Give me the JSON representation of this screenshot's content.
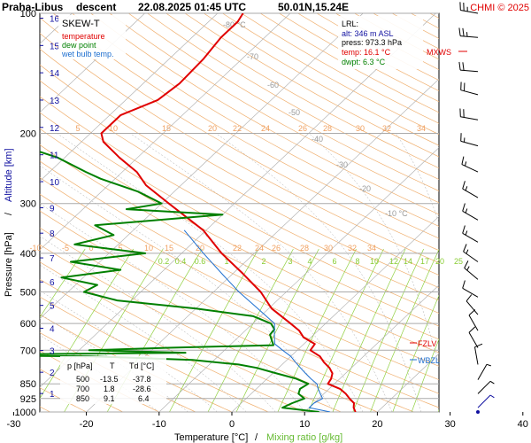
{
  "header": {
    "station": "Praha-Libus",
    "mode": "descent",
    "datetime": "22.08.2025 01:45 UTC",
    "coords": "50.01N,15.24E",
    "credit": "CHMI © 2025"
  },
  "legend": {
    "title": "SKEW-T",
    "items": [
      {
        "label": "temperature",
        "color": "#e00000"
      },
      {
        "label": "dew point",
        "color": "#008000"
      },
      {
        "label": "wet bulb temp.",
        "color": "#1e6fd0"
      }
    ]
  },
  "lrl": {
    "title": "LRL:",
    "alt": "alt: 346 m ASL",
    "press": "press: 973.3 hPa",
    "temp": "temp: 16.1 °C",
    "dwpt": "dwpt: 6.3 °C"
  },
  "table": {
    "headers": [
      "p [hPa]",
      "T",
      "Td [°C]"
    ],
    "rows": [
      [
        "500",
        "-13.5",
        "-37.8"
      ],
      [
        "700",
        "1.8",
        "-28.6"
      ],
      [
        "850",
        "9.1",
        "6.4"
      ]
    ]
  },
  "axes": {
    "xlabel_main": "Temperature [°C]",
    "xlabel_sep": "/",
    "xlabel_mix": "Mixing ratio [g/kg]",
    "ylabel_main": "Pressure [hPa]",
    "ylabel_sep": "/",
    "ylabel_alt": "Altitude [km]"
  },
  "markers": {
    "mxws": "MXWS",
    "fzlv": "FZLV",
    "wbzl": "WBZL"
  },
  "colors": {
    "temperature": "#e00000",
    "dewpoint": "#008000",
    "wetbulb": "#1e6fd0",
    "isotherm": "#aaaaaa",
    "dry_adiabat": "#f0b070",
    "moist_adiabat": "#aaaaaa",
    "mixing_ratio": "#90d040",
    "altitude": "#1010a0",
    "wind": "#000000"
  },
  "chart_data": {
    "type": "line",
    "subtype": "skew-t log-p diagram",
    "x_ticks": [
      -30,
      -20,
      -10,
      0,
      10,
      20,
      30,
      40
    ],
    "y_ticks": [
      100,
      200,
      300,
      400,
      500,
      600,
      700,
      850,
      925,
      1000
    ],
    "ylim": [
      1000,
      100
    ],
    "altitude_ticks_km": [
      1,
      2,
      3,
      4,
      5,
      6,
      7,
      8,
      9,
      10,
      11,
      12,
      13,
      14,
      15,
      16
    ],
    "mixing_ratio_labels": [
      "0.2",
      "0.4",
      "0.6",
      "1",
      "2",
      "3",
      "4",
      "6",
      "8",
      "10",
      "12",
      "14",
      "17",
      "20",
      "25"
    ],
    "dry_adiabat_labels": [
      "-10",
      "-5",
      "0",
      "5",
      "10",
      "15",
      "20",
      "22",
      "24",
      "26",
      "28",
      "30",
      "32",
      "34"
    ],
    "upper_dry_adiabat_labels": [
      "5",
      "10",
      "15",
      "20",
      "22",
      "24",
      "26",
      "28",
      "30",
      "32",
      "34"
    ],
    "isotherm_labels": [
      "-80 °C",
      "-70",
      "-60",
      "-50",
      "-40",
      "-30",
      "-20",
      "-10 °C"
    ],
    "series": [
      {
        "name": "temperature",
        "points": [
          [
            1000,
            17.0
          ],
          [
            975,
            16.1
          ],
          [
            950,
            15.5
          ],
          [
            925,
            14.2
          ],
          [
            900,
            13.0
          ],
          [
            875,
            11.5
          ],
          [
            850,
            9.1
          ],
          [
            825,
            8.8
          ],
          [
            800,
            8.2
          ],
          [
            775,
            7.0
          ],
          [
            750,
            5.4
          ],
          [
            725,
            4.0
          ],
          [
            700,
            1.8
          ],
          [
            675,
            1.5
          ],
          [
            650,
            -1.0
          ],
          [
            625,
            -2.6
          ],
          [
            600,
            -4.8
          ],
          [
            550,
            -9.6
          ],
          [
            500,
            -13.5
          ],
          [
            450,
            -18.6
          ],
          [
            400,
            -24.5
          ],
          [
            350,
            -30.4
          ],
          [
            300,
            -39.0
          ],
          [
            270,
            -44.8
          ],
          [
            250,
            -48.0
          ],
          [
            230,
            -52.5
          ],
          [
            210,
            -57.0
          ],
          [
            200,
            -58.5
          ],
          [
            180,
            -58.5
          ],
          [
            165,
            -55.6
          ],
          [
            150,
            -55.0
          ],
          [
            130,
            -55.3
          ],
          [
            115,
            -56.0
          ],
          [
            105,
            -56.0
          ],
          [
            100,
            -56.5
          ]
        ]
      },
      {
        "name": "dew point",
        "points": [
          [
            1000,
            12.0
          ],
          [
            975,
            6.3
          ],
          [
            950,
            7.0
          ],
          [
            925,
            8.0
          ],
          [
            900,
            6.5
          ],
          [
            875,
            6.0
          ],
          [
            850,
            6.4
          ],
          [
            825,
            4.0
          ],
          [
            800,
            0.5
          ],
          [
            775,
            -3.0
          ],
          [
            760,
            -6.0
          ],
          [
            740,
            -13.0
          ],
          [
            725,
            -27.5
          ],
          [
            720,
            -50.0
          ],
          [
            710,
            -15.0
          ],
          [
            700,
            -28.6
          ],
          [
            690,
            -18.0
          ],
          [
            680,
            -4.0
          ],
          [
            660,
            -5.0
          ],
          [
            640,
            -6.0
          ],
          [
            620,
            -6.2
          ],
          [
            600,
            -7.5
          ],
          [
            575,
            -11.0
          ],
          [
            550,
            -20.0
          ],
          [
            525,
            -32.0
          ],
          [
            500,
            -37.8
          ],
          [
            480,
            -37.0
          ],
          [
            460,
            -43.0
          ],
          [
            440,
            -36.0
          ],
          [
            420,
            -44.0
          ],
          [
            400,
            -35.0
          ],
          [
            380,
            -46.0
          ],
          [
            360,
            -42.0
          ],
          [
            340,
            -46.0
          ],
          [
            320,
            -30.0
          ],
          [
            310,
            -44.0
          ],
          [
            300,
            -40.0
          ],
          [
            280,
            -45.0
          ],
          [
            260,
            -52.0
          ],
          [
            250,
            -55.0
          ],
          [
            230,
            -61.0
          ],
          [
            210,
            -70.0
          ],
          [
            200,
            -73.0
          ],
          [
            190,
            -76.0
          ],
          [
            175,
            -83.0
          ],
          [
            160,
            -87.0
          ],
          [
            140,
            -88.5
          ],
          [
            125,
            -90.0
          ],
          [
            110,
            -88.5
          ],
          [
            100,
            -87.0
          ]
        ]
      },
      {
        "name": "wet bulb temp.",
        "points": [
          [
            1000,
            13.5
          ],
          [
            975,
            10.0
          ],
          [
            950,
            10.0
          ],
          [
            925,
            10.5
          ],
          [
            900,
            9.5
          ],
          [
            875,
            8.5
          ],
          [
            850,
            7.6
          ],
          [
            825,
            6.0
          ],
          [
            800,
            4.5
          ],
          [
            775,
            3.0
          ],
          [
            750,
            1.5
          ],
          [
            725,
            0.0
          ],
          [
            700,
            -2.0
          ],
          [
            675,
            -4.0
          ],
          [
            650,
            -5.0
          ],
          [
            625,
            -6.0
          ],
          [
            600,
            -7.0
          ],
          [
            550,
            -11.5
          ],
          [
            500,
            -16.5
          ],
          [
            450,
            -21.5
          ],
          [
            400,
            -27.0
          ],
          [
            350,
            -33.0
          ]
        ]
      }
    ],
    "wind_barbs": [
      {
        "p": 100,
        "dir": 280,
        "speed_kt": 25
      },
      {
        "p": 115,
        "dir": 275,
        "speed_kt": 25
      },
      {
        "p": 140,
        "dir": 275,
        "speed_kt": 20
      },
      {
        "p": 160,
        "dir": 285,
        "speed_kt": 20
      },
      {
        "p": 185,
        "dir": 280,
        "speed_kt": 20
      },
      {
        "p": 215,
        "dir": 285,
        "speed_kt": 15
      },
      {
        "p": 250,
        "dir": 295,
        "speed_kt": 15
      },
      {
        "p": 290,
        "dir": 300,
        "speed_kt": 15
      },
      {
        "p": 330,
        "dir": 300,
        "speed_kt": 15
      },
      {
        "p": 375,
        "dir": 300,
        "speed_kt": 15
      },
      {
        "p": 420,
        "dir": 305,
        "speed_kt": 15
      },
      {
        "p": 465,
        "dir": 310,
        "speed_kt": 15
      },
      {
        "p": 515,
        "dir": 300,
        "speed_kt": 10
      },
      {
        "p": 570,
        "dir": 320,
        "speed_kt": 10
      },
      {
        "p": 625,
        "dir": 330,
        "speed_kt": 10
      },
      {
        "p": 690,
        "dir": 330,
        "speed_kt": 10
      },
      {
        "p": 760,
        "dir": 350,
        "speed_kt": 10
      },
      {
        "p": 830,
        "dir": 30,
        "speed_kt": 5
      },
      {
        "p": 900,
        "dir": 45,
        "speed_kt": 5
      },
      {
        "p": 975,
        "dir": 45,
        "speed_kt": 5
      }
    ]
  }
}
